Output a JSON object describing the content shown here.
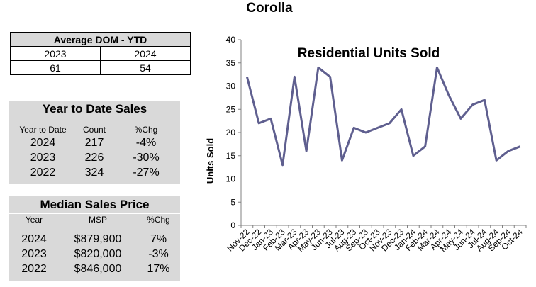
{
  "page": {
    "title": "Corolla"
  },
  "dom_table": {
    "header": "Average DOM - YTD",
    "years": [
      "2023",
      "2024"
    ],
    "values": [
      "61",
      "54"
    ]
  },
  "ytd_sales": {
    "title": "Year to Date Sales",
    "columns": [
      "Year to Date",
      "Count",
      "%Chg"
    ],
    "rows": [
      [
        "2024",
        "217",
        "-4%"
      ],
      [
        "2023",
        "226",
        "-30%"
      ],
      [
        "2022",
        "324",
        "-27%"
      ]
    ]
  },
  "median_price": {
    "title": "Median Sales Price",
    "columns": [
      "Year",
      "MSP",
      "%Chg"
    ],
    "rows": [
      [
        "2024",
        "$879,900",
        "7%"
      ],
      [
        "2023",
        "$820,000",
        "-3%"
      ],
      [
        "2022",
        "$846,000",
        "17%"
      ]
    ]
  },
  "colors": {
    "line": "#5f5f8f",
    "panel": "#d9d9d9",
    "axis": "#808080"
  },
  "chart_data": {
    "type": "line",
    "title": "Residential Units Sold",
    "xlabel": "",
    "ylabel": "Units Sold",
    "ylim": [
      0,
      40
    ],
    "yticks": [
      0,
      5,
      10,
      15,
      20,
      25,
      30,
      35,
      40
    ],
    "grid": false,
    "categories": [
      "Nov-22",
      "Dec-22",
      "Jan-23",
      "Feb-23",
      "Mar-23",
      "Apr-23",
      "May-23",
      "Jun-23",
      "Jul-23",
      "Aug-23",
      "Sep-23",
      "Oct-23",
      "Nov-23",
      "Dec-23",
      "Jan-24",
      "Feb-24",
      "Mar-24",
      "Apr-24",
      "May-24",
      "Jun-24",
      "Jul-24",
      "Aug-24",
      "Sep-24",
      "Oct-24"
    ],
    "series": [
      {
        "values": [
          32,
          22,
          23,
          13,
          32,
          16,
          34,
          32,
          14,
          21,
          20,
          21,
          22,
          25,
          15,
          17,
          34,
          28,
          23,
          26,
          27,
          14,
          16,
          17
        ]
      }
    ]
  }
}
